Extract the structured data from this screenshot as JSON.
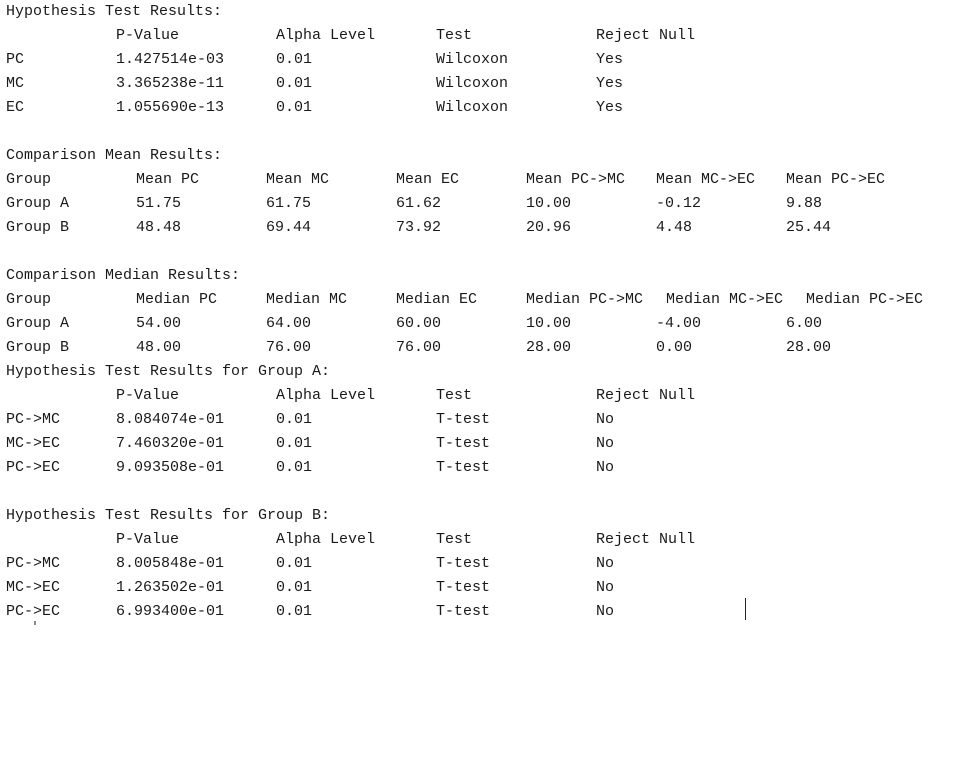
{
  "hyp_overall": {
    "title": "Hypothesis Test Results:",
    "headers": [
      "P-Value",
      "Alpha Level",
      "Test",
      "Reject Null"
    ],
    "rows": [
      {
        "label": "PC",
        "p_value": "1.427514e-03",
        "alpha": "0.01",
        "test": "Wilcoxon",
        "reject": "Yes"
      },
      {
        "label": "MC",
        "p_value": "3.365238e-11",
        "alpha": "0.01",
        "test": "Wilcoxon",
        "reject": "Yes"
      },
      {
        "label": "EC",
        "p_value": "1.055690e-13",
        "alpha": "0.01",
        "test": "Wilcoxon",
        "reject": "Yes"
      }
    ]
  },
  "mean_results": {
    "title": "Comparison Mean Results:",
    "headers": [
      "Group",
      "Mean PC",
      "Mean MC",
      "Mean EC",
      "Mean PC->MC",
      "Mean MC->EC",
      "Mean PC->EC"
    ],
    "rows": [
      [
        "Group A",
        "51.75",
        "61.75",
        "61.62",
        "10.00",
        "-0.12",
        "9.88"
      ],
      [
        "Group B",
        "48.48",
        "69.44",
        "73.92",
        "20.96",
        "4.48",
        "25.44"
      ]
    ]
  },
  "median_results": {
    "title": "Comparison Median Results:",
    "headers": [
      "Group",
      "Median PC",
      "Median MC",
      "Median EC",
      "Median PC->MC",
      "Median MC->EC",
      "Median PC->EC"
    ],
    "rows": [
      [
        "Group A",
        "54.00",
        "64.00",
        "60.00",
        "10.00",
        "-4.00",
        "6.00"
      ],
      [
        "Group B",
        "48.00",
        "76.00",
        "76.00",
        "28.00",
        "0.00",
        "28.00"
      ]
    ]
  },
  "hyp_group_a": {
    "title": "Hypothesis Test Results for Group A:",
    "headers": [
      "P-Value",
      "Alpha Level",
      "Test",
      "Reject Null"
    ],
    "rows": [
      {
        "label": "PC->MC",
        "p_value": "8.084074e-01",
        "alpha": "0.01",
        "test": "T-test",
        "reject": "No"
      },
      {
        "label": "MC->EC",
        "p_value": "7.460320e-01",
        "alpha": "0.01",
        "test": "T-test",
        "reject": "No"
      },
      {
        "label": "PC->EC",
        "p_value": "9.093508e-01",
        "alpha": "0.01",
        "test": "T-test",
        "reject": "No"
      }
    ]
  },
  "hyp_group_b": {
    "title": "Hypothesis Test Results for Group B:",
    "headers": [
      "P-Value",
      "Alpha Level",
      "Test",
      "Reject Null"
    ],
    "rows": [
      {
        "label": "PC->MC",
        "p_value": "8.005848e-01",
        "alpha": "0.01",
        "test": "T-test",
        "reject": "No"
      },
      {
        "label": "MC->EC",
        "p_value": "1.263502e-01",
        "alpha": "0.01",
        "test": "T-test",
        "reject": "No"
      },
      {
        "label": "PC->EC",
        "p_value": "6.993400e-01",
        "alpha": "0.01",
        "test": "T-test",
        "reject": "No"
      }
    ]
  }
}
